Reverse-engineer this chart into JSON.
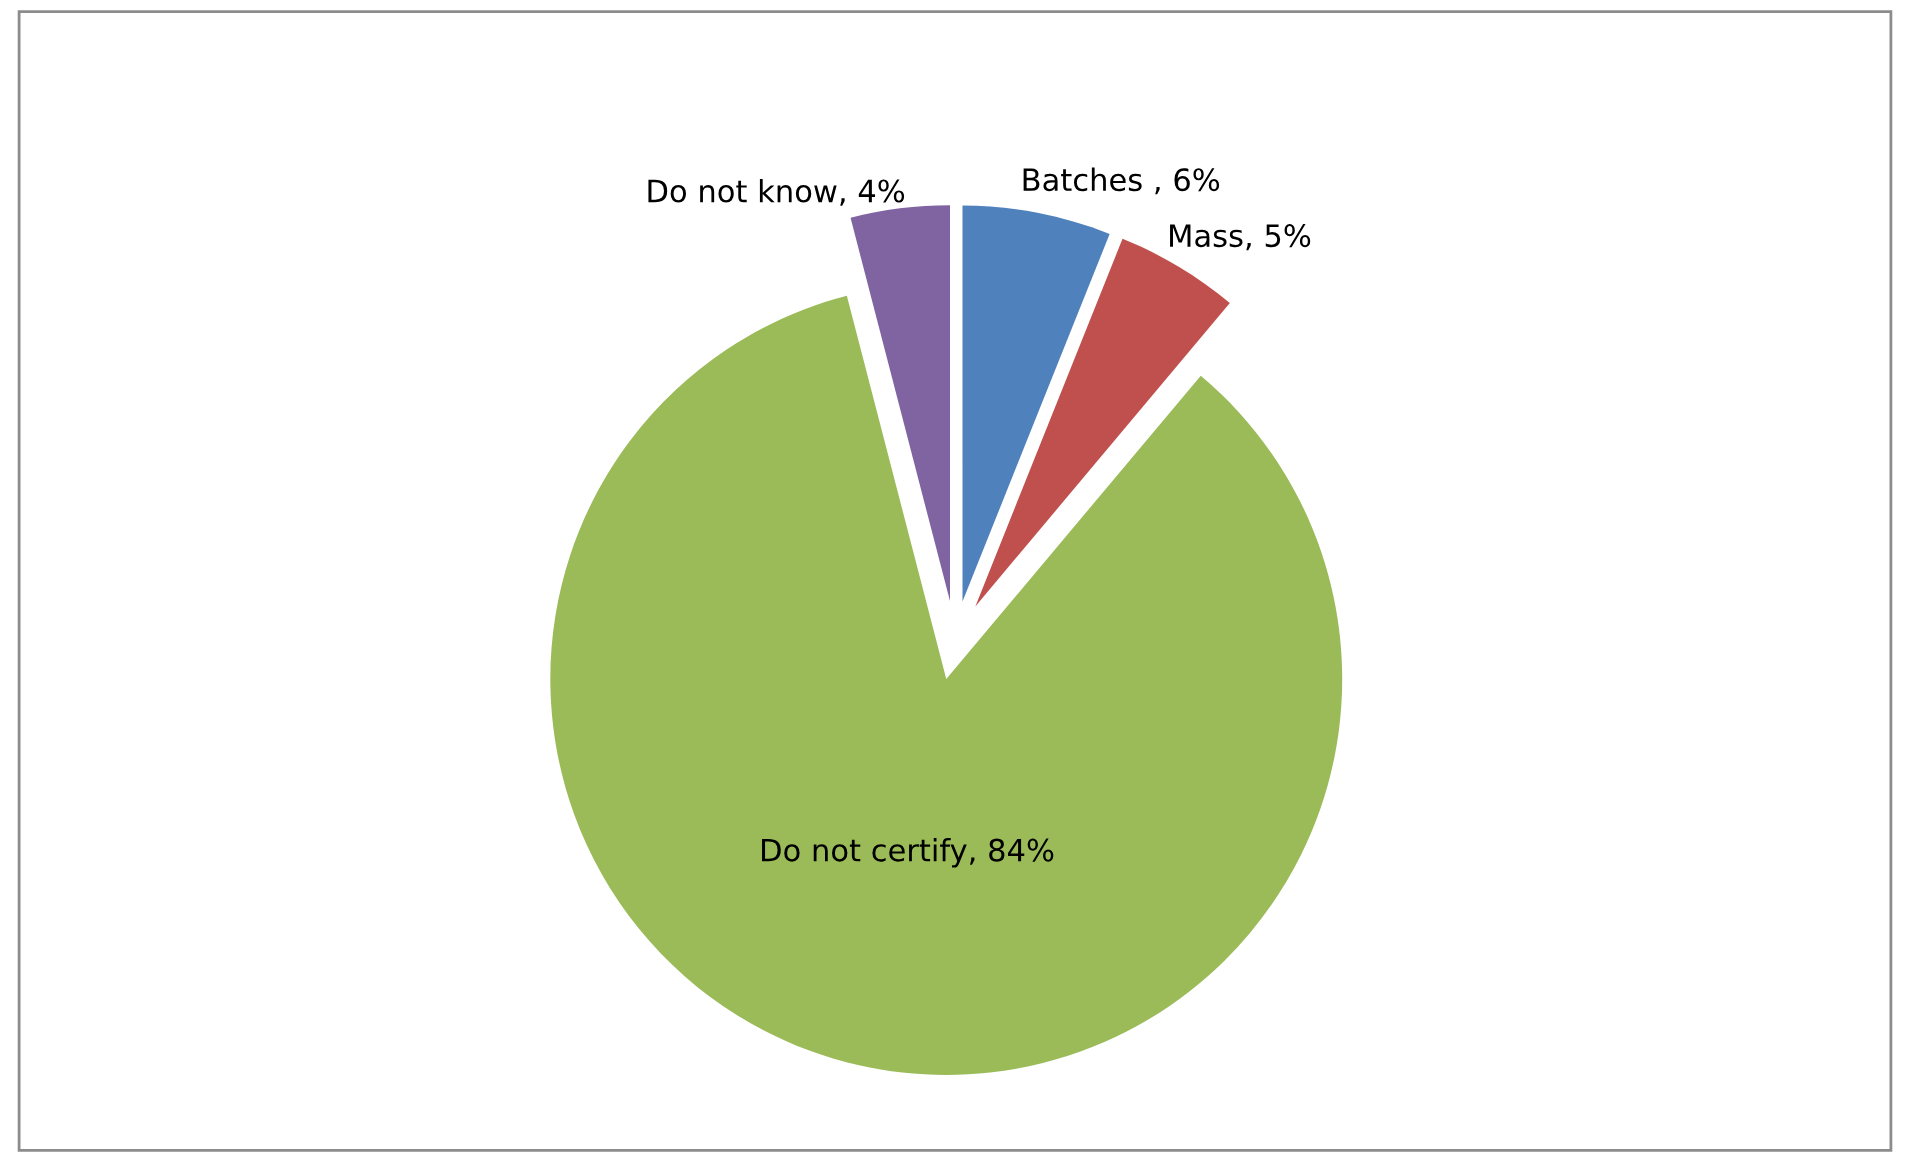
{
  "chart_data": {
    "type": "pie",
    "categories": [
      "Batches ",
      "Mass",
      "Do not certify",
      "Do not know"
    ],
    "values": [
      6,
      5,
      84,
      4
    ],
    "value_labels": [
      "6%",
      "5%",
      "84%",
      "4%"
    ],
    "colors": [
      "#4f81bd",
      "#c0504d",
      "#9bbb59",
      "#8064a2"
    ],
    "legend": false
  }
}
